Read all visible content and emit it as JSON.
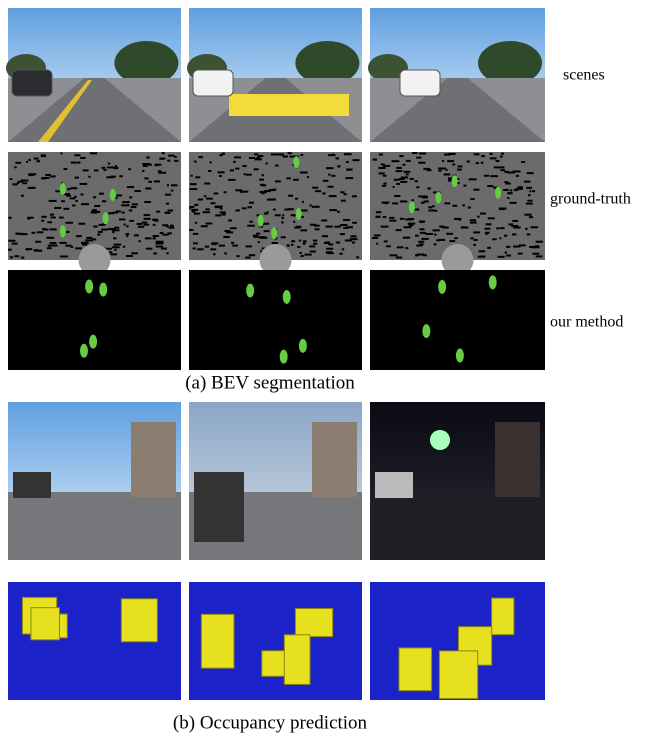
{
  "row_labels": [
    "scenes",
    "ground-truth",
    "our method"
  ],
  "captions": [
    "(a) BEV segmentation",
    "(b) Occupancy prediction"
  ]
}
